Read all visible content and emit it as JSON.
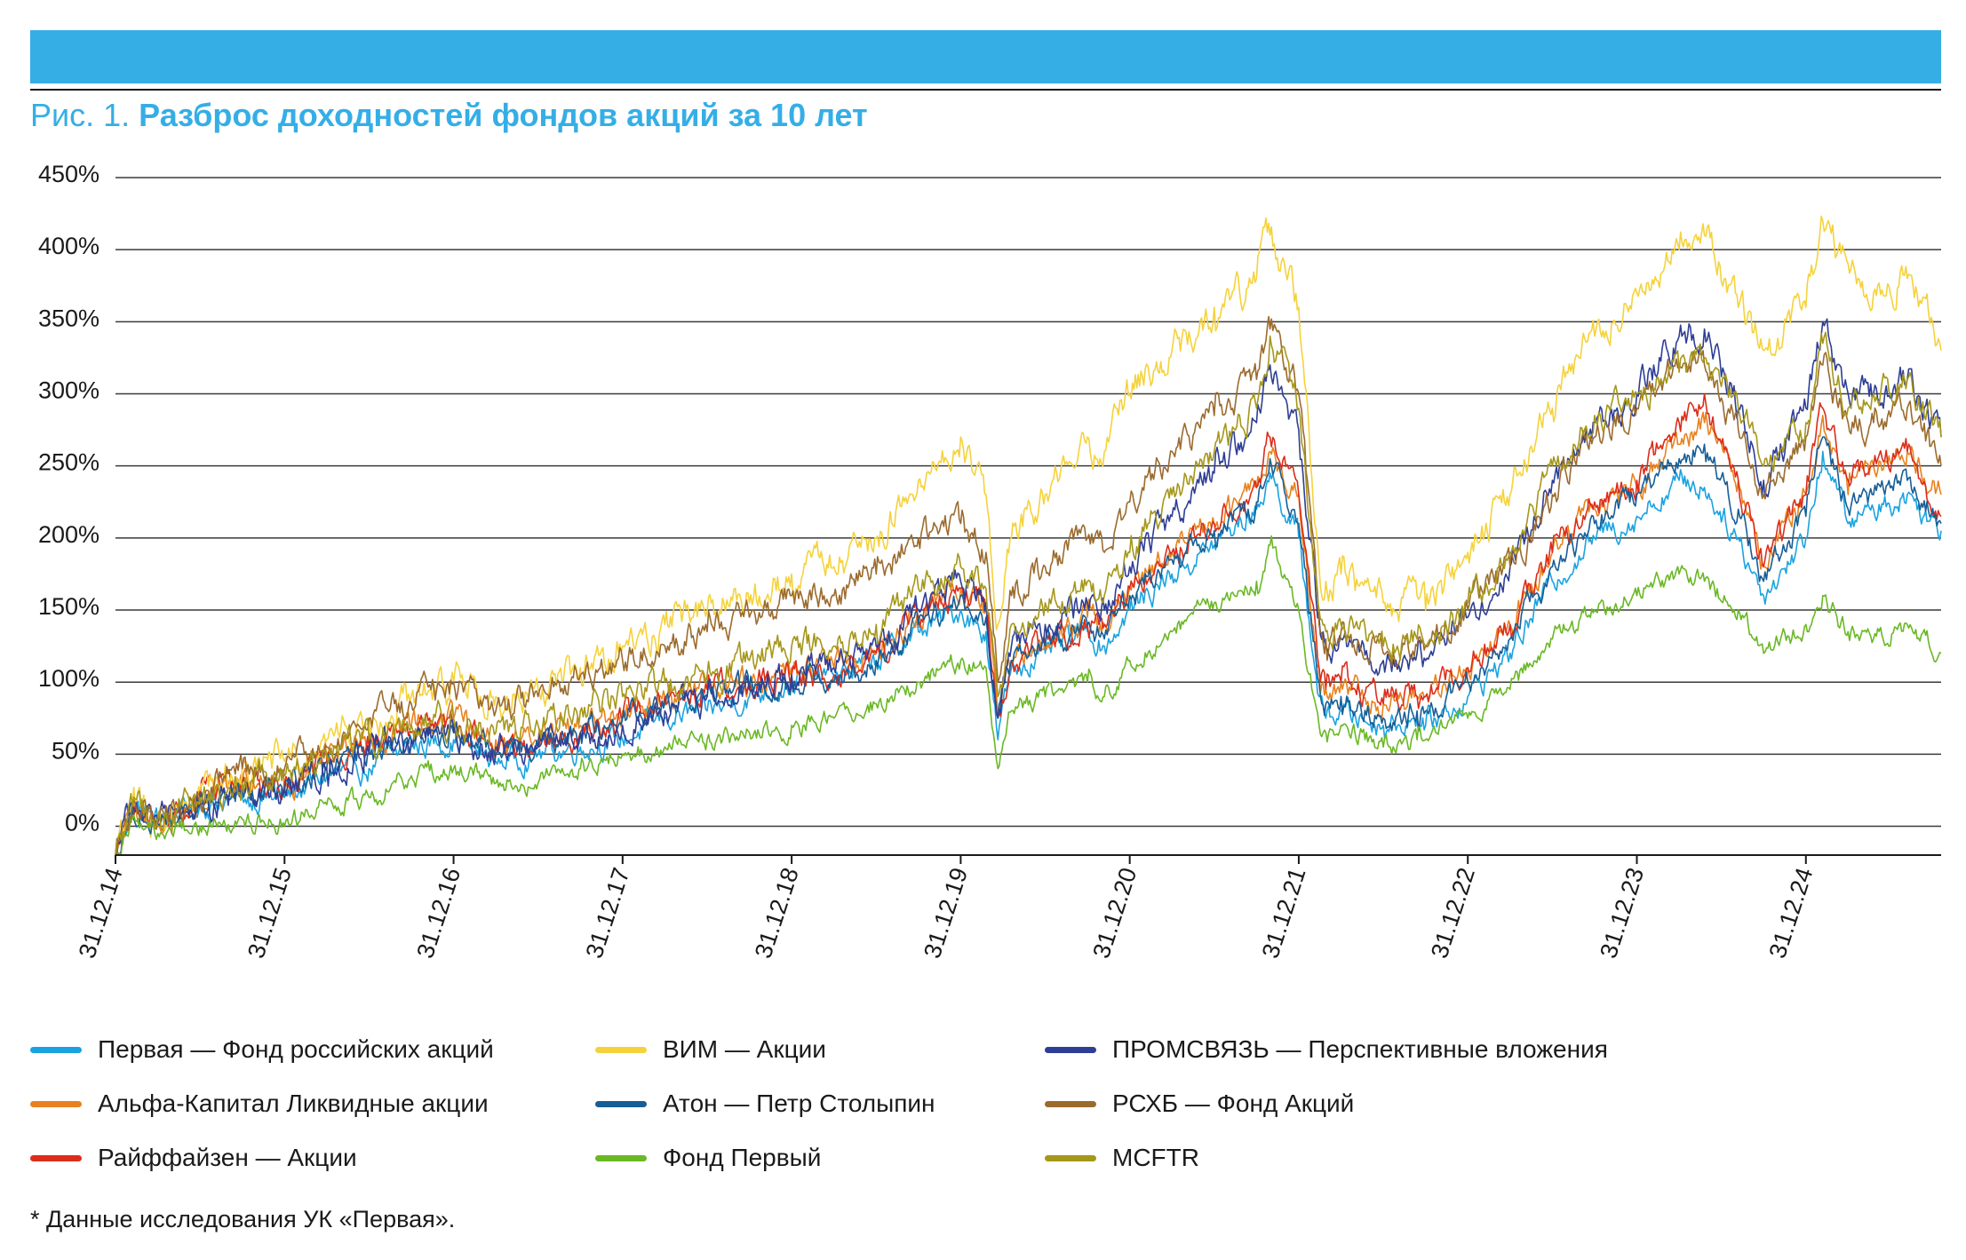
{
  "header": {
    "title_prefix": "Рис. 1.",
    "title_bold": "Разброс доходностей фондов акций за 10 лет"
  },
  "footnote": "* Данные исследования УК «Первая».",
  "chart_data": {
    "type": "line",
    "title": "Разброс доходностей фондов акций за 10 лет",
    "xlabel": "",
    "ylabel": "",
    "ylim": [
      -20,
      450
    ],
    "y_ticks": [
      0,
      50,
      100,
      150,
      200,
      250,
      300,
      350,
      400,
      450
    ],
    "y_tick_labels": [
      "0%",
      "50%",
      "100%",
      "150%",
      "200%",
      "250%",
      "300%",
      "350%",
      "400%",
      "450%"
    ],
    "x_range": [
      2015.0,
      2025.8
    ],
    "x_ticks": [
      2015,
      2016,
      2017,
      2018,
      2019,
      2020,
      2021,
      2022,
      2023,
      2024,
      2025
    ],
    "x_tick_labels": [
      "31.12.14",
      "31.12.15",
      "31.12.16",
      "31.12.17",
      "31.12.18",
      "31.12.19",
      "31.12.20",
      "31.12.21",
      "31.12.22",
      "31.12.23",
      "31.12.24"
    ],
    "grid": true,
    "legend_position": "bottom",
    "x": [
      2015.0,
      2015.1,
      2015.25,
      2015.5,
      2015.75,
      2016.0,
      2016.25,
      2016.5,
      2016.75,
      2017.0,
      2017.25,
      2017.5,
      2017.75,
      2018.0,
      2018.25,
      2018.5,
      2018.75,
      2019.0,
      2019.25,
      2019.5,
      2019.75,
      2020.0,
      2020.15,
      2020.22,
      2020.3,
      2020.5,
      2020.75,
      2020.85,
      2021.0,
      2021.25,
      2021.5,
      2021.75,
      2021.83,
      2022.0,
      2022.12,
      2022.16,
      2022.25,
      2022.5,
      2022.7,
      2022.75,
      2023.0,
      2023.25,
      2023.5,
      2023.75,
      2024.0,
      2024.25,
      2024.4,
      2024.6,
      2024.75,
      2025.0,
      2025.1,
      2025.25,
      2025.4,
      2025.6,
      2025.8
    ],
    "series": [
      {
        "name": "Первая — Фонд российских акций",
        "color": "#1aa3e0",
        "values": [
          -20,
          15,
          5,
          15,
          20,
          20,
          35,
          40,
          55,
          60,
          45,
          50,
          55,
          60,
          75,
          80,
          90,
          100,
          105,
          115,
          135,
          150,
          135,
          60,
          110,
          120,
          135,
          125,
          150,
          175,
          195,
          220,
          245,
          200,
          90,
          75,
          80,
          70,
          75,
          70,
          90,
          120,
          170,
          200,
          215,
          240,
          235,
          200,
          160,
          200,
          260,
          210,
          220,
          230,
          205
        ]
      },
      {
        "name": "Альфа-Капитал Ликвидные акции",
        "color": "#e8821e",
        "values": [
          -20,
          10,
          0,
          20,
          30,
          25,
          45,
          60,
          70,
          75,
          60,
          60,
          70,
          80,
          90,
          95,
          100,
          110,
          110,
          120,
          145,
          165,
          150,
          80,
          115,
          130,
          145,
          140,
          165,
          190,
          210,
          235,
          260,
          230,
          110,
          95,
          100,
          85,
          90,
          90,
          110,
          140,
          190,
          220,
          235,
          265,
          280,
          240,
          180,
          230,
          285,
          230,
          250,
          260,
          230
        ]
      },
      {
        "name": "Райффайзен — Акции",
        "color": "#dc2d1a",
        "values": [
          -20,
          12,
          2,
          20,
          30,
          30,
          45,
          55,
          65,
          70,
          55,
          55,
          65,
          75,
          90,
          95,
          100,
          105,
          105,
          120,
          145,
          165,
          150,
          75,
          115,
          125,
          140,
          140,
          165,
          190,
          210,
          235,
          270,
          230,
          110,
          95,
          100,
          85,
          90,
          90,
          110,
          140,
          190,
          225,
          240,
          280,
          300,
          240,
          180,
          230,
          290,
          240,
          250,
          260,
          215
        ]
      },
      {
        "name": "ВИМ — Акции",
        "color": "#f5d23c",
        "values": [
          -20,
          15,
          5,
          25,
          40,
          45,
          60,
          75,
          90,
          100,
          90,
          95,
          110,
          125,
          140,
          150,
          155,
          175,
          180,
          200,
          240,
          270,
          230,
          140,
          200,
          230,
          270,
          260,
          300,
          330,
          360,
          380,
          410,
          360,
          180,
          170,
          175,
          155,
          160,
          150,
          190,
          230,
          290,
          340,
          370,
          400,
          410,
          360,
          330,
          360,
          420,
          390,
          370,
          380,
          330
        ]
      },
      {
        "name": "Атон — Петр Столыпин",
        "color": "#175e96",
        "values": [
          -20,
          13,
          2,
          18,
          25,
          25,
          40,
          50,
          60,
          65,
          55,
          55,
          65,
          75,
          85,
          90,
          95,
          100,
          100,
          115,
          140,
          160,
          145,
          75,
          115,
          125,
          140,
          130,
          160,
          185,
          205,
          225,
          255,
          210,
          100,
          85,
          90,
          75,
          80,
          80,
          100,
          130,
          180,
          210,
          230,
          255,
          265,
          220,
          170,
          215,
          270,
          220,
          230,
          240,
          210
        ]
      },
      {
        "name": "Фонд Первый",
        "color": "#6ab825",
        "values": [
          -20,
          5,
          -5,
          0,
          5,
          0,
          15,
          20,
          35,
          40,
          30,
          30,
          40,
          50,
          55,
          60,
          65,
          70,
          75,
          85,
          100,
          115,
          110,
          40,
          80,
          90,
          100,
          90,
          115,
          135,
          155,
          170,
          195,
          150,
          70,
          65,
          70,
          55,
          60,
          60,
          75,
          95,
          130,
          150,
          160,
          175,
          170,
          150,
          120,
          140,
          160,
          135,
          130,
          140,
          120
        ]
      },
      {
        "name": "ПРОМСВЯЗЬ — Перспективные вложения",
        "color": "#2e3e96",
        "values": [
          -20,
          14,
          3,
          15,
          25,
          25,
          40,
          50,
          60,
          65,
          50,
          55,
          65,
          70,
          80,
          90,
          95,
          105,
          110,
          125,
          150,
          170,
          155,
          75,
          125,
          140,
          155,
          150,
          180,
          215,
          245,
          280,
          320,
          275,
          145,
          125,
          130,
          115,
          120,
          115,
          145,
          180,
          240,
          280,
          300,
          340,
          345,
          290,
          240,
          290,
          350,
          300,
          300,
          310,
          270
        ]
      },
      {
        "name": "РСХБ — Фонд Акций",
        "color": "#9b6b2e",
        "values": [
          -20,
          15,
          5,
          20,
          40,
          40,
          55,
          75,
          85,
          100,
          80,
          90,
          105,
          115,
          125,
          135,
          145,
          160,
          160,
          175,
          200,
          210,
          190,
          100,
          160,
          180,
          200,
          190,
          225,
          260,
          285,
          310,
          345,
          300,
          140,
          130,
          135,
          120,
          125,
          125,
          150,
          180,
          230,
          270,
          290,
          320,
          320,
          275,
          230,
          270,
          320,
          280,
          280,
          290,
          250
        ]
      },
      {
        "name": "MCFTR",
        "color": "#a5971a",
        "values": [
          -20,
          14,
          5,
          20,
          30,
          35,
          50,
          60,
          70,
          75,
          65,
          70,
          80,
          90,
          100,
          105,
          115,
          125,
          125,
          140,
          165,
          180,
          165,
          90,
          140,
          155,
          170,
          160,
          190,
          230,
          260,
          290,
          340,
          290,
          150,
          135,
          140,
          125,
          130,
          125,
          155,
          190,
          250,
          285,
          300,
          315,
          325,
          290,
          250,
          280,
          335,
          290,
          300,
          310,
          270
        ]
      }
    ]
  },
  "legend": {
    "items": [
      {
        "label": "Первая — Фонд российских акций",
        "color": "#1aa3e0"
      },
      {
        "label": "Альфа-Капитал Ликвидные акции",
        "color": "#e8821e"
      },
      {
        "label": "Райффайзен — Акции",
        "color": "#dc2d1a"
      },
      {
        "label": "ВИМ — Акции",
        "color": "#f5d23c"
      },
      {
        "label": "Атон — Петр Столыпин",
        "color": "#175e96"
      },
      {
        "label": "Фонд Первый",
        "color": "#6ab825"
      },
      {
        "label": "ПРОМСВЯЗЬ — Перспективные вложения",
        "color": "#2e3e96"
      },
      {
        "label": "РСХБ — Фонд Акций",
        "color": "#9b6b2e"
      },
      {
        "label": "MCFTR",
        "color": "#a5971a"
      }
    ]
  }
}
